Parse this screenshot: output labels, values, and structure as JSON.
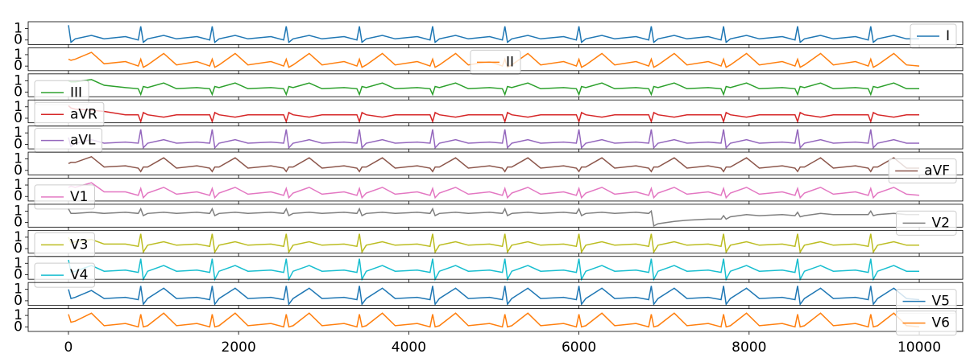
{
  "chart_data": {
    "type": "line",
    "x": [
      0,
      30,
      80,
      270,
      420,
      670,
      820,
      850,
      880,
      930,
      1120,
      1270,
      1510,
      1660,
      1690,
      1720,
      1770,
      1960,
      2110,
      2380,
      2530,
      2560,
      2590,
      2640,
      2830,
      2980,
      3240,
      3390,
      3420,
      3450,
      3500,
      3690,
      3840,
      4100,
      4250,
      4280,
      4310,
      4360,
      4550,
      4700,
      4950,
      5100,
      5130,
      5160,
      5210,
      5400,
      5550,
      5820,
      5970,
      6000,
      6030,
      6080,
      6270,
      6420,
      6670,
      6820,
      6850,
      6880,
      6930,
      7120,
      7270,
      7520,
      7670,
      7700,
      7730,
      7780,
      7970,
      8120,
      8390,
      8540,
      8570,
      8600,
      8650,
      8840,
      8990,
      9250,
      9400,
      9430,
      9460,
      9510,
      9700,
      9850,
      10000
    ],
    "xlim": [
      -473,
      10511
    ],
    "xticks": [
      0,
      2000,
      4000,
      6000,
      8000,
      10000
    ],
    "ylim": [
      -0.4,
      1.6
    ],
    "yticks": [
      0,
      1
    ],
    "series": [
      {
        "name": "I",
        "color": "#1f77b4",
        "legend": "upper right",
        "values": [
          1.3,
          -0.2,
          0.1,
          0.4,
          0.1,
          0.3,
          0.0,
          1.2,
          -0.2,
          0.1,
          0.4,
          0.1,
          0.3,
          0.0,
          1.2,
          -0.2,
          0.1,
          0.4,
          0.1,
          0.3,
          0.0,
          1.2,
          -0.2,
          0.1,
          0.4,
          0.1,
          0.3,
          0.0,
          1.2,
          -0.2,
          0.1,
          0.4,
          0.1,
          0.3,
          0.0,
          1.2,
          -0.2,
          0.1,
          0.4,
          0.1,
          0.3,
          0.0,
          1.2,
          -0.2,
          0.1,
          0.4,
          0.1,
          0.3,
          0.0,
          1.2,
          -0.2,
          0.1,
          0.4,
          0.1,
          0.3,
          0.0,
          1.2,
          -0.2,
          0.1,
          0.4,
          0.1,
          0.3,
          0.0,
          1.2,
          -0.2,
          0.1,
          0.4,
          0.1,
          0.3,
          0.0,
          1.2,
          -0.2,
          0.1,
          0.4,
          0.1,
          0.3,
          0.0,
          1.2,
          -0.2,
          0.1,
          0.4,
          0.1,
          0.1
        ]
      },
      {
        "name": "II",
        "color": "#ff7f0e",
        "legend": "upper center",
        "values": [
          0.6,
          0.5,
          0.6,
          1.2,
          0.2,
          0.4,
          0.0,
          0.6,
          -0.1,
          0.1,
          1.1,
          0.1,
          0.4,
          0.0,
          0.6,
          -0.1,
          0.1,
          1.1,
          0.1,
          0.4,
          0.0,
          0.6,
          -0.1,
          0.1,
          1.1,
          0.1,
          0.4,
          0.0,
          0.6,
          -0.1,
          0.1,
          1.1,
          0.1,
          0.4,
          0.0,
          0.6,
          -0.1,
          0.1,
          1.1,
          0.1,
          0.4,
          0.0,
          0.6,
          -0.1,
          0.1,
          1.1,
          0.1,
          0.4,
          0.0,
          0.6,
          -0.1,
          0.1,
          1.1,
          0.1,
          0.4,
          0.0,
          0.6,
          -0.1,
          0.1,
          1.1,
          0.1,
          0.4,
          0.0,
          0.6,
          -0.1,
          0.1,
          1.1,
          0.1,
          0.4,
          0.0,
          0.6,
          -0.1,
          0.1,
          1.1,
          0.1,
          0.4,
          0.0,
          0.6,
          -0.1,
          0.1,
          1.1,
          0.1,
          0.0
        ]
      },
      {
        "name": "III",
        "color": "#2ca02c",
        "legend": "lower left",
        "values": [
          1.0,
          0.9,
          0.9,
          1.1,
          0.6,
          0.4,
          0.3,
          -0.2,
          0.5,
          0.4,
          0.8,
          0.3,
          0.4,
          0.3,
          -0.2,
          0.5,
          0.4,
          0.8,
          0.3,
          0.4,
          0.3,
          -0.2,
          0.5,
          0.4,
          0.8,
          0.3,
          0.4,
          0.3,
          -0.2,
          0.5,
          0.4,
          0.8,
          0.3,
          0.4,
          0.3,
          -0.2,
          0.5,
          0.4,
          0.8,
          0.3,
          0.4,
          0.3,
          -0.2,
          0.5,
          0.4,
          0.8,
          0.3,
          0.4,
          0.3,
          -0.2,
          0.5,
          0.4,
          0.8,
          0.3,
          0.4,
          0.3,
          -0.2,
          0.5,
          0.4,
          0.8,
          0.3,
          0.4,
          0.3,
          -0.2,
          0.5,
          0.4,
          0.8,
          0.3,
          0.4,
          0.3,
          -0.2,
          0.5,
          0.4,
          0.8,
          0.3,
          0.4,
          0.3,
          -0.2,
          0.5,
          0.4,
          0.8,
          0.3,
          0.3
        ]
      },
      {
        "name": "aVR",
        "color": "#d62728",
        "legend": "upper left",
        "values": [
          1.1,
          0.9,
          0.8,
          0.7,
          0.6,
          0.3,
          0.3,
          -0.3,
          0.5,
          0.3,
          0.1,
          0.3,
          0.3,
          0.3,
          -0.3,
          0.5,
          0.3,
          0.1,
          0.3,
          0.3,
          0.3,
          -0.3,
          0.5,
          0.3,
          0.1,
          0.3,
          0.3,
          0.3,
          -0.3,
          0.5,
          0.3,
          0.1,
          0.3,
          0.3,
          0.3,
          -0.3,
          0.5,
          0.3,
          0.1,
          0.3,
          0.3,
          0.3,
          -0.3,
          0.5,
          0.3,
          0.1,
          0.3,
          0.3,
          0.3,
          -0.3,
          0.5,
          0.3,
          0.1,
          0.3,
          0.3,
          0.3,
          -0.3,
          0.5,
          0.3,
          0.1,
          0.3,
          0.3,
          0.3,
          -0.3,
          0.5,
          0.3,
          0.1,
          0.3,
          0.3,
          0.3,
          -0.3,
          0.5,
          0.3,
          0.1,
          0.3,
          0.3,
          0.3,
          -0.3,
          0.5,
          0.3,
          0.1,
          0.3,
          0.3
        ]
      },
      {
        "name": "aVL",
        "color": "#9467bd",
        "legend": "upper left",
        "values": [
          0.6,
          -0.2,
          0.1,
          0.4,
          0.1,
          0.2,
          0.1,
          1.3,
          -0.3,
          0.1,
          0.4,
          0.1,
          0.2,
          0.1,
          1.3,
          -0.3,
          0.1,
          0.4,
          0.1,
          0.2,
          0.1,
          1.3,
          -0.3,
          0.1,
          0.4,
          0.1,
          0.2,
          0.1,
          1.3,
          -0.3,
          0.1,
          0.4,
          0.1,
          0.2,
          0.1,
          1.3,
          -0.3,
          0.1,
          0.4,
          0.1,
          0.2,
          0.1,
          1.3,
          -0.3,
          0.1,
          0.4,
          0.1,
          0.2,
          0.1,
          1.3,
          -0.3,
          0.1,
          0.4,
          0.1,
          0.2,
          0.1,
          1.3,
          -0.3,
          0.1,
          0.4,
          0.1,
          0.2,
          0.1,
          1.3,
          -0.3,
          0.1,
          0.4,
          0.1,
          0.2,
          0.1,
          1.3,
          -0.3,
          0.1,
          0.4,
          0.1,
          0.2,
          0.1,
          1.3,
          -0.3,
          0.1,
          0.4,
          0.1,
          0.1
        ]
      },
      {
        "name": "aVF",
        "color": "#8c564b",
        "legend": "lower right",
        "values": [
          0.6,
          0.7,
          0.7,
          1.2,
          0.3,
          0.4,
          0.2,
          -0.1,
          0.3,
          0.3,
          1.1,
          0.2,
          0.4,
          0.2,
          -0.1,
          0.3,
          0.3,
          1.1,
          0.2,
          0.4,
          0.2,
          -0.1,
          0.3,
          0.3,
          1.1,
          0.2,
          0.4,
          0.2,
          -0.1,
          0.3,
          0.3,
          1.1,
          0.2,
          0.4,
          0.2,
          -0.1,
          0.3,
          0.3,
          1.1,
          0.2,
          0.4,
          0.2,
          -0.1,
          0.3,
          0.3,
          1.1,
          0.2,
          0.4,
          0.2,
          -0.1,
          0.3,
          0.3,
          1.1,
          0.2,
          0.4,
          0.2,
          -0.1,
          0.3,
          0.3,
          1.1,
          0.2,
          0.4,
          0.2,
          -0.1,
          0.3,
          0.3,
          1.1,
          0.2,
          0.4,
          0.2,
          -0.1,
          0.3,
          0.3,
          1.1,
          0.2,
          0.4,
          0.2,
          -0.1,
          0.3,
          0.3,
          1.1,
          0.2,
          0.2
        ]
      },
      {
        "name": "V1",
        "color": "#e377c2",
        "legend": "lower left",
        "values": [
          0.8,
          0.9,
          0.8,
          1.2,
          0.4,
          0.4,
          0.1,
          0.7,
          -0.1,
          0.3,
          0.8,
          0.2,
          0.4,
          0.1,
          0.7,
          -0.1,
          0.3,
          0.8,
          0.2,
          0.4,
          0.1,
          0.7,
          -0.1,
          0.3,
          0.8,
          0.2,
          0.4,
          0.1,
          0.7,
          -0.1,
          0.3,
          0.8,
          0.2,
          0.4,
          0.1,
          0.7,
          -0.1,
          0.3,
          0.8,
          0.2,
          0.4,
          0.1,
          0.7,
          -0.1,
          0.3,
          0.8,
          0.2,
          0.4,
          0.1,
          0.7,
          -0.1,
          0.3,
          0.8,
          0.2,
          0.4,
          0.1,
          0.7,
          -0.1,
          0.3,
          0.8,
          0.2,
          0.4,
          0.1,
          0.7,
          -0.1,
          0.3,
          0.8,
          0.2,
          0.4,
          0.1,
          0.7,
          -0.1,
          0.3,
          0.8,
          0.2,
          0.4,
          0.1,
          0.7,
          -0.1,
          0.3,
          0.8,
          0.2,
          0.1
        ]
      },
      {
        "name": "V2",
        "color": "#7f7f7f",
        "legend": "lower right",
        "values": [
          1.2,
          0.8,
          0.8,
          0.9,
          0.8,
          0.9,
          0.8,
          1.2,
          0.6,
          0.8,
          0.9,
          0.8,
          0.9,
          0.8,
          1.2,
          0.6,
          0.8,
          0.9,
          0.8,
          0.9,
          0.8,
          1.2,
          0.6,
          0.8,
          0.9,
          0.8,
          0.9,
          0.8,
          1.2,
          0.6,
          0.8,
          0.9,
          0.8,
          0.9,
          0.8,
          1.2,
          0.6,
          0.8,
          0.9,
          0.8,
          0.9,
          0.8,
          1.2,
          0.6,
          0.8,
          0.9,
          0.8,
          0.9,
          0.8,
          1.2,
          0.6,
          0.8,
          0.9,
          0.8,
          0.9,
          0.8,
          1.0,
          -0.3,
          -0.1,
          0.1,
          0.2,
          0.3,
          0.3,
          0.6,
          0.3,
          0.5,
          0.7,
          0.6,
          0.7,
          0.6,
          0.9,
          0.5,
          0.6,
          0.8,
          0.7,
          0.7,
          0.7,
          1.0,
          0.6,
          0.7,
          0.8,
          0.7,
          0.7
        ]
      },
      {
        "name": "V3",
        "color": "#bcbd22",
        "legend": "upper left",
        "values": [
          1.0,
          0.5,
          0.6,
          0.8,
          0.4,
          0.4,
          0.2,
          1.3,
          -0.3,
          0.3,
          0.6,
          0.3,
          0.4,
          0.2,
          1.3,
          -0.3,
          0.3,
          0.6,
          0.3,
          0.4,
          0.2,
          1.3,
          -0.3,
          0.3,
          0.6,
          0.3,
          0.4,
          0.2,
          1.3,
          -0.3,
          0.3,
          0.6,
          0.3,
          0.4,
          0.2,
          1.3,
          -0.3,
          0.3,
          0.6,
          0.3,
          0.4,
          0.2,
          1.3,
          -0.3,
          0.3,
          0.6,
          0.3,
          0.4,
          0.2,
          1.3,
          -0.3,
          0.3,
          0.6,
          0.3,
          0.4,
          0.2,
          1.3,
          -0.3,
          0.3,
          0.6,
          0.3,
          0.4,
          0.2,
          1.3,
          -0.3,
          0.3,
          0.6,
          0.3,
          0.4,
          0.2,
          1.3,
          -0.3,
          0.3,
          0.6,
          0.3,
          0.4,
          0.2,
          1.3,
          -0.3,
          0.3,
          0.6,
          0.3,
          0.3
        ]
      },
      {
        "name": "V4",
        "color": "#17becf",
        "legend": "lower left",
        "values": [
          1.3,
          0.2,
          0.3,
          0.8,
          0.3,
          0.4,
          0.2,
          1.4,
          -0.4,
          0.3,
          0.8,
          0.3,
          0.4,
          0.2,
          1.4,
          -0.4,
          0.3,
          0.8,
          0.3,
          0.4,
          0.2,
          1.4,
          -0.4,
          0.3,
          0.8,
          0.3,
          0.4,
          0.2,
          1.4,
          -0.4,
          0.3,
          0.8,
          0.3,
          0.4,
          0.2,
          1.4,
          -0.4,
          0.3,
          0.8,
          0.3,
          0.4,
          0.2,
          1.4,
          -0.4,
          0.3,
          0.8,
          0.3,
          0.4,
          0.2,
          1.4,
          -0.4,
          0.3,
          0.8,
          0.3,
          0.4,
          0.2,
          1.4,
          -0.4,
          0.3,
          0.8,
          0.3,
          0.4,
          0.2,
          1.4,
          -0.4,
          0.3,
          0.8,
          0.3,
          0.4,
          0.2,
          1.4,
          -0.4,
          0.3,
          0.8,
          0.3,
          0.4,
          0.2,
          1.4,
          -0.4,
          0.3,
          0.8,
          0.3,
          0.3
        ]
      },
      {
        "name": "V5",
        "color": "#1f77b4",
        "legend": "lower right",
        "values": [
          1.0,
          0.2,
          0.3,
          0.9,
          0.2,
          0.3,
          0.1,
          1.3,
          -0.3,
          0.2,
          1.1,
          0.2,
          0.3,
          0.1,
          1.3,
          -0.3,
          0.2,
          1.1,
          0.2,
          0.3,
          0.1,
          1.3,
          -0.3,
          0.2,
          1.1,
          0.2,
          0.3,
          0.1,
          1.3,
          -0.3,
          0.2,
          1.1,
          0.2,
          0.3,
          0.1,
          1.3,
          -0.3,
          0.2,
          1.1,
          0.2,
          0.3,
          0.1,
          1.3,
          -0.3,
          0.2,
          1.1,
          0.2,
          0.3,
          0.1,
          1.3,
          -0.3,
          0.2,
          1.1,
          0.2,
          0.3,
          0.1,
          1.3,
          -0.3,
          0.2,
          1.1,
          0.2,
          0.3,
          0.1,
          1.3,
          -0.3,
          0.2,
          1.1,
          0.2,
          0.3,
          0.1,
          1.3,
          -0.3,
          0.2,
          1.1,
          0.2,
          0.3,
          0.1,
          1.3,
          -0.3,
          0.2,
          1.1,
          0.2,
          0.1
        ]
      },
      {
        "name": "V6",
        "color": "#ff7f0e",
        "legend": "upper right",
        "values": [
          1.1,
          0.4,
          0.5,
          1.2,
          0.1,
          0.3,
          0.0,
          1.1,
          0.0,
          0.1,
          1.2,
          0.1,
          0.3,
          0.0,
          1.1,
          0.0,
          0.1,
          1.2,
          0.1,
          0.3,
          0.0,
          1.1,
          0.0,
          0.1,
          1.2,
          0.1,
          0.3,
          0.0,
          1.1,
          0.0,
          0.1,
          1.2,
          0.1,
          0.3,
          0.0,
          1.1,
          0.0,
          0.1,
          1.2,
          0.1,
          0.3,
          0.0,
          1.1,
          0.0,
          0.1,
          1.2,
          0.1,
          0.3,
          0.0,
          1.1,
          0.0,
          0.1,
          1.2,
          0.1,
          0.3,
          0.0,
          1.1,
          0.0,
          0.1,
          1.2,
          0.1,
          0.3,
          0.0,
          1.1,
          0.0,
          0.1,
          1.2,
          0.1,
          0.3,
          0.0,
          1.1,
          0.0,
          0.1,
          1.2,
          0.1,
          0.3,
          0.0,
          1.1,
          0.0,
          0.1,
          1.2,
          0.1,
          0.0
        ]
      }
    ]
  }
}
